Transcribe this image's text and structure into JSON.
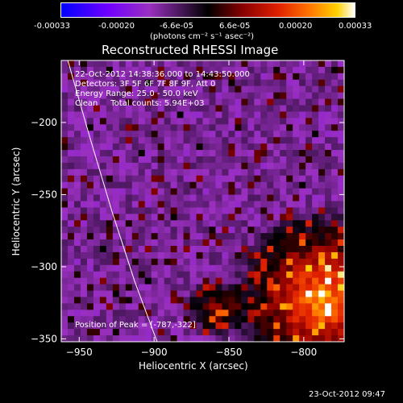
{
  "chart_data": {
    "type": "heatmap",
    "title": "Reconstructed RHESSI Image",
    "xlabel": "Heliocentric X (arcsec)",
    "ylabel": "Heliocentric Y (arcsec)",
    "xlim": [
      -962,
      -773
    ],
    "ylim": [
      -352,
      -157
    ],
    "x_ticks": [
      -950,
      -900,
      -850,
      -800
    ],
    "y_ticks": [
      -200,
      -250,
      -300,
      -350
    ],
    "colorbar": {
      "unit": "(photons cm⁻² s⁻¹ asec⁻²)",
      "range": [
        -0.00033,
        0.00033
      ],
      "ticks": [
        "-0.00033",
        "-0.00020",
        "-6.6e-05",
        "6.6e-05",
        "0.00020",
        "0.00033"
      ]
    },
    "annotations": {
      "time_range": "22-Oct-2012 14:38:36.000 to 14:43:50.000",
      "detectors": "Detectors: 3F 5F 6F 7F 8F 9F, Att 0",
      "energy_range": "Energy Range: 25.0 - 50.0 keV",
      "clean": "Clean     Total counts: 5.94E+03",
      "peak": "Position of Peak = [-787,-322]"
    },
    "peak_position": [
      -787,
      -322
    ],
    "limb_curve": [
      [
        -959,
        -152
      ],
      [
        -943,
        -210
      ],
      [
        -928,
        -262
      ],
      [
        -913,
        -310
      ],
      [
        -898,
        -352
      ]
    ]
  },
  "footer": {
    "timestamp": "23-Oct-2012 09:47"
  }
}
